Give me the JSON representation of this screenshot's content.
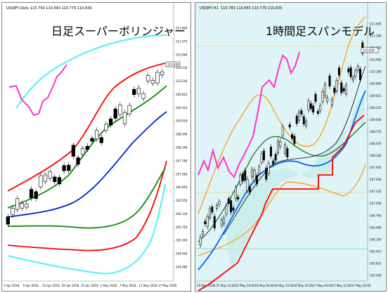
{
  "left_chart": {
    "symbol_label": "USDJPY,Daily",
    "ohlc_header": "110.709 110.843 110.779 110.839",
    "title": "日足スーパーボリンジャー",
    "price_tag": "110.839",
    "y_ticks": [
      "111.800",
      "111.470",
      "110.960",
      "110.530",
      "110.240",
      "109.810",
      "109.410",
      "109.020",
      "108.590",
      "108.190",
      "107.780",
      "107.360",
      "106.950",
      "106.550",
      "106.130",
      "105.720",
      "105.300",
      "104.900",
      "104.480"
    ],
    "x_ticks": [
      "3 Apr 2018",
      "9 Apr 2018",
      "13 Apr 2018",
      "19 Apr 2018",
      "25 Apr 2018",
      "1 May 2018",
      "7 May 2018",
      "11 May 2018",
      "17 May 2018"
    ]
  },
  "right_chart": {
    "symbol_label": "USDJPY,H1",
    "ohlc_header": "110.783 110.843 110.779 110.839",
    "title": "1時間足スパンモデル",
    "price_tag": "110.839",
    "y_ticks": [
      "111.605",
      "111.185",
      "110.755",
      "110.465",
      "110.180",
      "109.900",
      "109.615",
      "109.325",
      "109.040",
      "108.755",
      "108.470",
      "108.185",
      "107.905",
      "107.620",
      "107.335",
      "107.050",
      "106.765",
      "106.480",
      "106.195",
      "105.910",
      "105.625",
      "105.340"
    ],
    "x_ticks": [
      "15 May 2018",
      "15 May 12:00",
      "15 May 20:00",
      "16 May 04:00",
      "16 May 12:00",
      "16 May 20:00",
      "17 May 04:00",
      "17 May 12:00",
      "17 May 20:00"
    ]
  },
  "colors": {
    "bollinger_outer": "#5ff0f5",
    "bollinger_2": "#ff0000",
    "bollinger_1": "#0a8a0a",
    "mid_blue": "#0022cc",
    "chikou_span": "#ff33cc",
    "span_a": "#0066ff",
    "span_b": "#ff0000",
    "orange_band": "#ff9900"
  }
}
